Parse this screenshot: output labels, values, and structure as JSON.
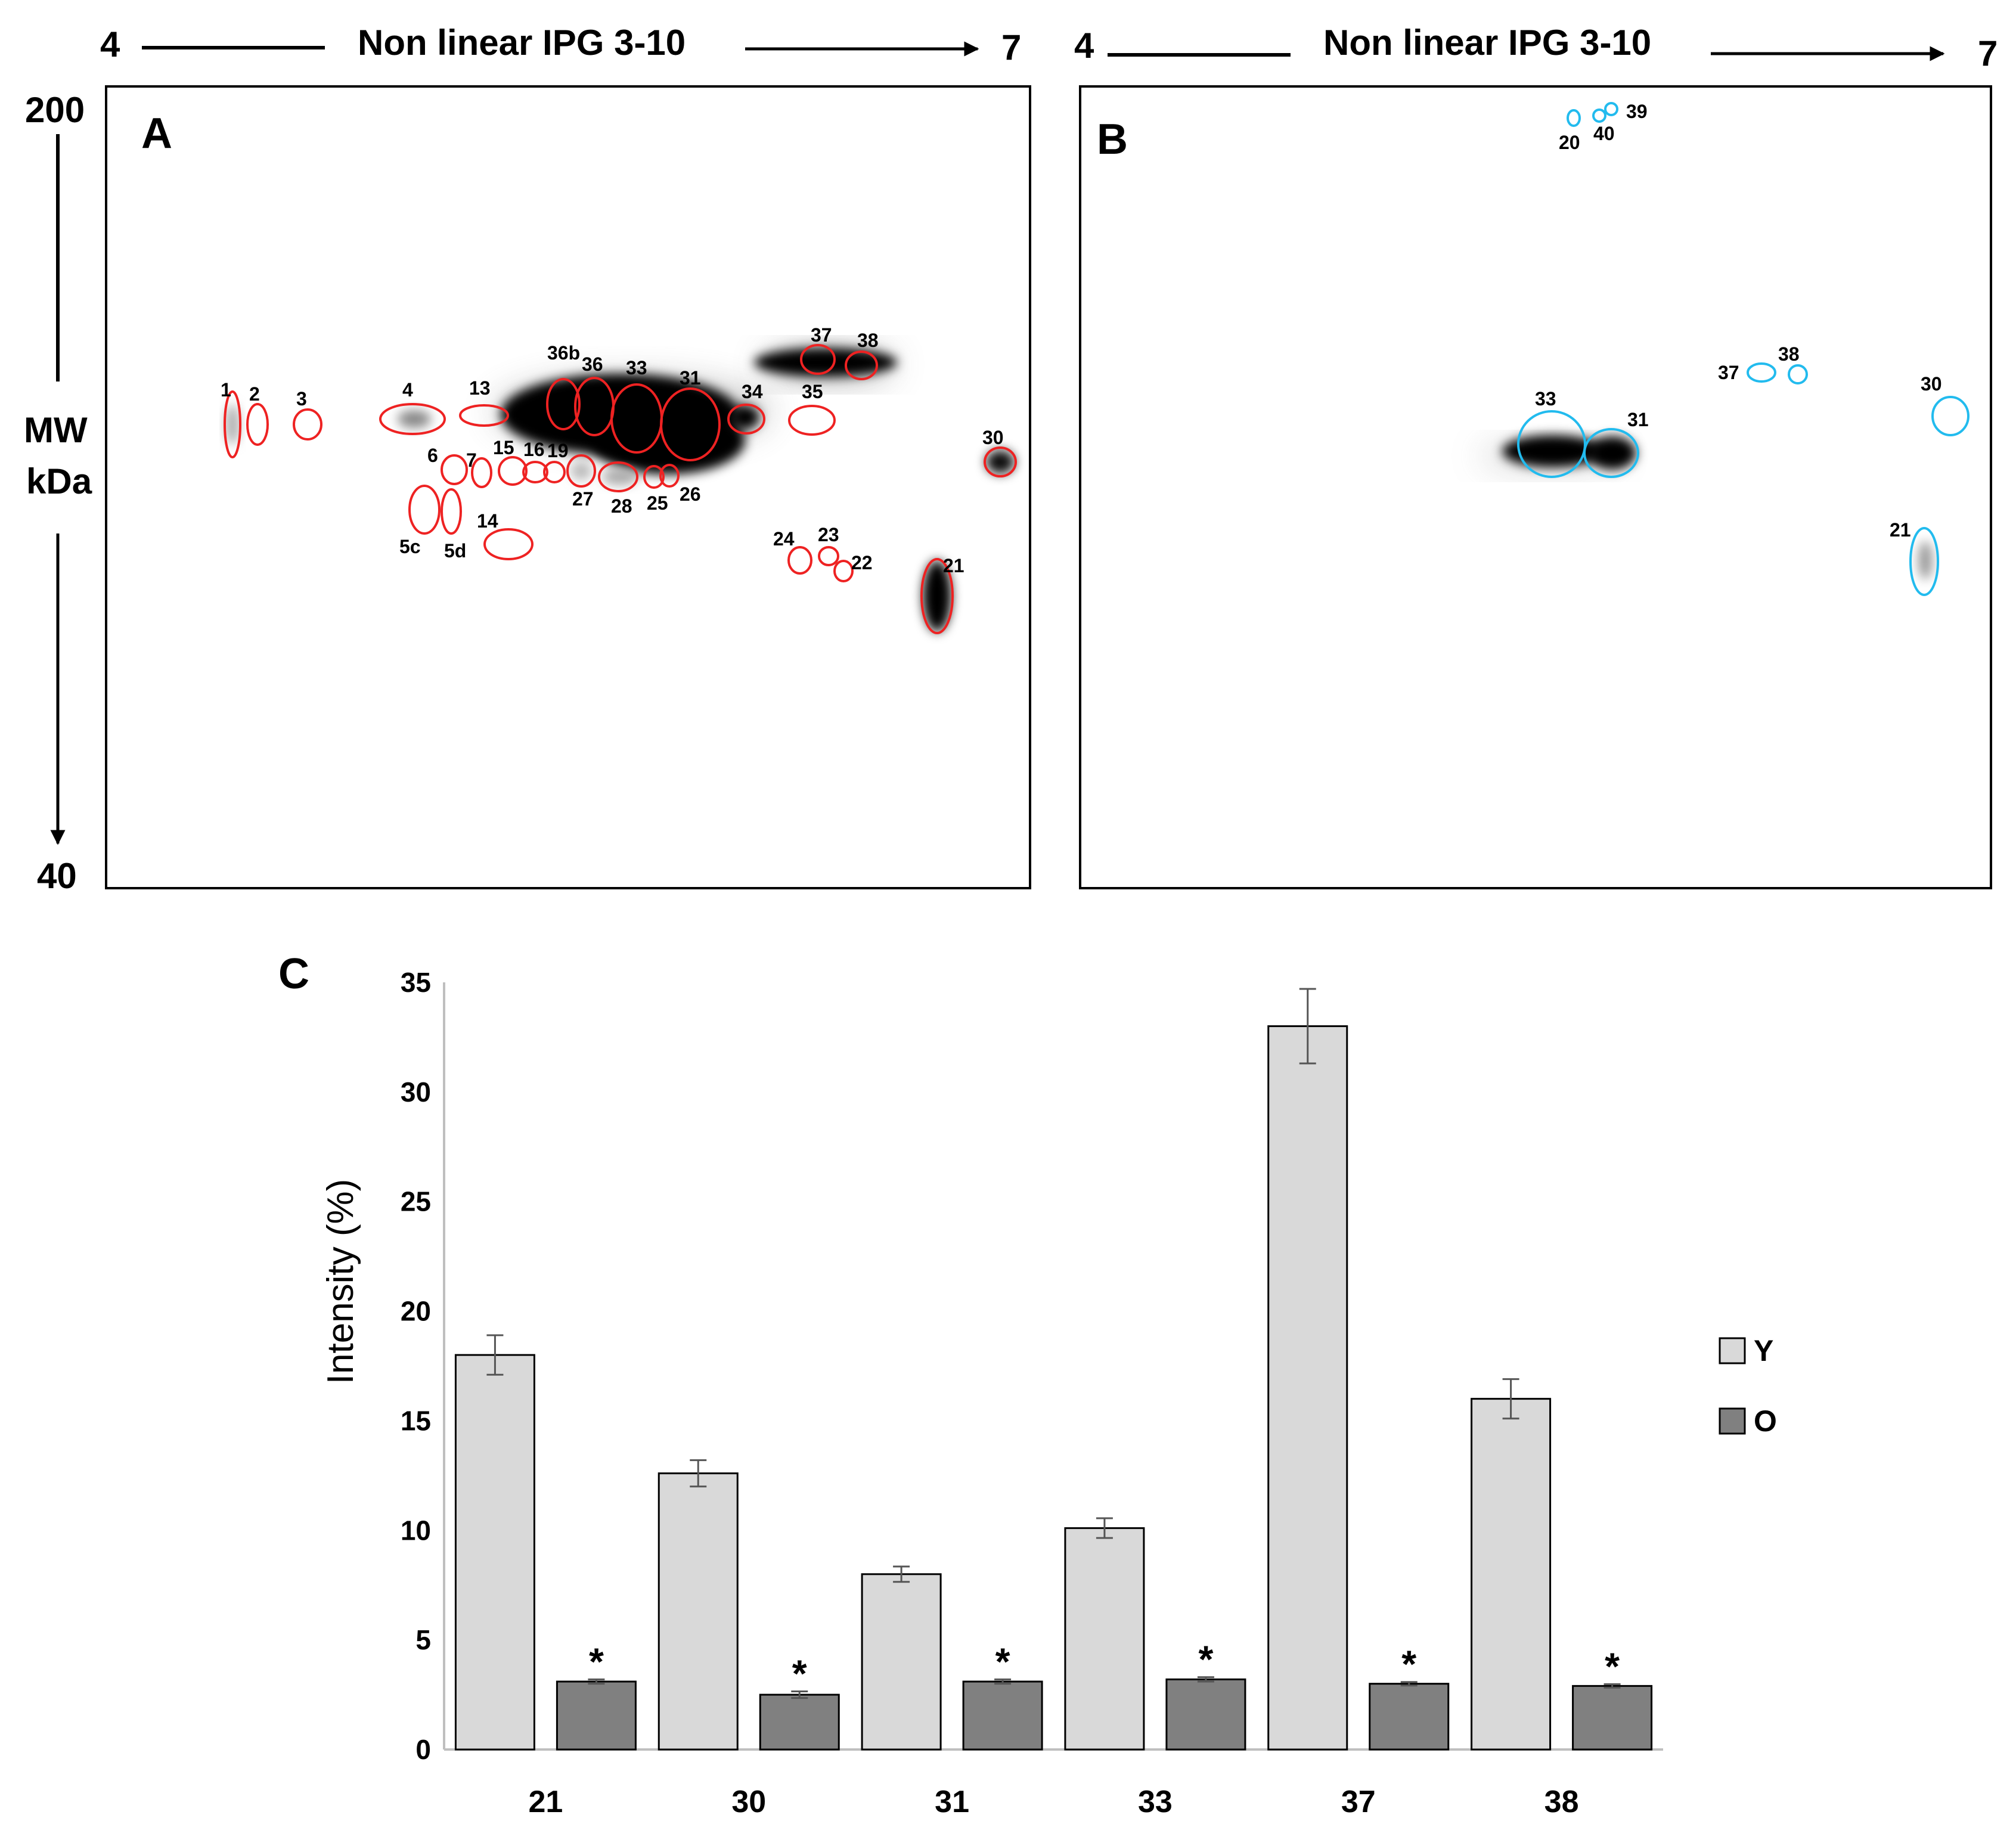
{
  "panels": {
    "A": {
      "label": "A",
      "ph_start": "4",
      "ph_end": "7",
      "gradient_label": "Non linear IPG 3-10",
      "mw_top": "200",
      "mw_bottom": "40",
      "mw_axis_label_1": "MW",
      "mw_axis_label_2": "kDa",
      "spot_color": "#ee2222",
      "spot_labels": [
        "1",
        "2",
        "3",
        "4",
        "13",
        "36b",
        "36",
        "33",
        "31",
        "34",
        "35",
        "37",
        "38",
        "30",
        "6",
        "7",
        "15",
        "16",
        "19",
        "27",
        "28",
        "25",
        "26",
        "5c",
        "5d",
        "14",
        "24",
        "23",
        "22",
        "21"
      ]
    },
    "B": {
      "label": "B",
      "ph_start": "4",
      "ph_end": "7",
      "gradient_label": "Non linear IPG 3-10",
      "spot_color": "#22bbee",
      "spot_labels": [
        "20",
        "40",
        "39",
        "33",
        "31",
        "37",
        "38",
        "30",
        "21"
      ]
    }
  },
  "chart_data": {
    "type": "bar",
    "panel_label": "C",
    "title": "",
    "xlabel": "",
    "ylabel": "Intensity (%)",
    "ylim": [
      0,
      35
    ],
    "yticks": [
      0,
      5,
      10,
      15,
      20,
      25,
      30,
      35
    ],
    "grid": false,
    "legend_position": "right",
    "categories": [
      "21",
      "30",
      "31",
      "33",
      "37",
      "38"
    ],
    "series": [
      {
        "name": "Y",
        "color": "#d9d9d9",
        "values": [
          18.0,
          12.6,
          8.0,
          10.1,
          33.0,
          16.0
        ],
        "errors": [
          0.9,
          0.6,
          0.35,
          0.45,
          1.7,
          0.9
        ]
      },
      {
        "name": "O",
        "color": "#808080",
        "values": [
          3.1,
          2.5,
          3.1,
          3.2,
          3.0,
          2.9
        ],
        "errors": [
          0.1,
          0.15,
          0.1,
          0.1,
          0.08,
          0.08
        ]
      }
    ],
    "significance_marker": "*",
    "significant": [
      true,
      true,
      true,
      true,
      true,
      true
    ]
  }
}
